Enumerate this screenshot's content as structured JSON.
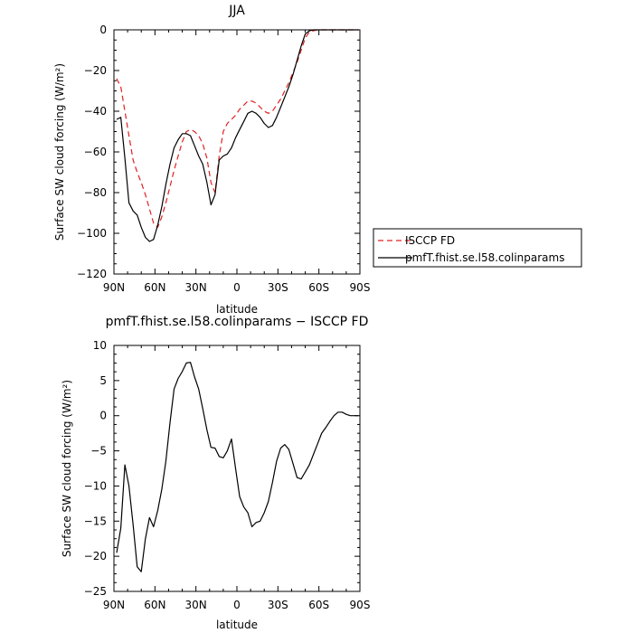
{
  "chart_data": [
    {
      "type": "line",
      "title": "JJA",
      "xlabel": "latitude",
      "ylabel": "Surface SW cloud forcing (W/m²)",
      "xlim": [
        90,
        -90
      ],
      "ylim": [
        -120,
        0
      ],
      "xticks": [
        90,
        60,
        30,
        0,
        -30,
        -60,
        -90
      ],
      "xtick_labels": [
        "90N",
        "60N",
        "30N",
        "0",
        "30S",
        "60S",
        "90S"
      ],
      "yticks": [
        0,
        -20,
        -40,
        -60,
        -80,
        -100,
        -120
      ],
      "ytick_labels": [
        "0",
        "−20",
        "−40",
        "−60",
        "−80",
        "−100",
        "−120"
      ],
      "legend": "outside-right",
      "series": [
        {
          "name": "ISCCP FD",
          "color": "#e02020",
          "dash": "dashed",
          "x": [
            88,
            85,
            82,
            79,
            76,
            73,
            70,
            67,
            64,
            61,
            58,
            55,
            52,
            49,
            46,
            43,
            40,
            37,
            34,
            31,
            28,
            25,
            22,
            19,
            16,
            13,
            10,
            7,
            4,
            1,
            -2,
            -5,
            -8,
            -11,
            -14,
            -17,
            -20,
            -23,
            -26,
            -29,
            -32,
            -35,
            -38,
            -41,
            -44,
            -47,
            -50,
            -53,
            -56,
            -59,
            -62,
            -65,
            -68,
            -71,
            -74,
            -77,
            -80,
            -83,
            -86,
            -89
          ],
          "y": [
            -24,
            -28,
            -40,
            -52,
            -64,
            -70,
            -75,
            -81,
            -88,
            -95,
            -97,
            -92,
            -85,
            -77,
            -69,
            -62,
            -55,
            -50,
            -49,
            -50,
            -52,
            -56,
            -63,
            -75,
            -80,
            -62,
            -50,
            -46,
            -44,
            -42,
            -39,
            -37,
            -35,
            -35,
            -36,
            -38,
            -40,
            -41,
            -40,
            -37,
            -34,
            -30,
            -26,
            -21,
            -16,
            -10,
            -4,
            -1,
            -0.5,
            0,
            0,
            0,
            0,
            0,
            0,
            0,
            0,
            0,
            0,
            0
          ]
        },
        {
          "name": "pmfT.fhist.se.l58.colinparams",
          "color": "#000000",
          "dash": "solid",
          "x": [
            88,
            85,
            82,
            79,
            76,
            73,
            70,
            67,
            64,
            61,
            58,
            55,
            52,
            49,
            46,
            43,
            40,
            37,
            34,
            31,
            28,
            25,
            22,
            19,
            16,
            13,
            10,
            7,
            4,
            1,
            -2,
            -5,
            -8,
            -11,
            -14,
            -17,
            -20,
            -23,
            -26,
            -29,
            -32,
            -35,
            -38,
            -41,
            -44,
            -47,
            -50,
            -53,
            -56,
            -59,
            -62,
            -65,
            -68,
            -71,
            -74,
            -77,
            -80,
            -83,
            -86,
            -89
          ],
          "y": [
            -44,
            -43,
            -63,
            -85,
            -89,
            -91,
            -97,
            -102,
            -104,
            -103,
            -96,
            -87,
            -76,
            -66,
            -58,
            -54,
            -51,
            -51,
            -52,
            -57,
            -62,
            -66,
            -75,
            -86,
            -81,
            -64,
            -62,
            -61,
            -58,
            -53,
            -49,
            -45,
            -41,
            -40,
            -41,
            -43,
            -46,
            -48,
            -47,
            -43,
            -38,
            -33,
            -28,
            -22,
            -15,
            -8,
            -2,
            -0.5,
            0,
            0,
            0,
            0,
            0,
            0,
            0,
            0,
            0,
            0,
            0,
            0
          ]
        }
      ]
    },
    {
      "type": "line",
      "title": "pmfT.fhist.se.l58.colinparams − ISCCP FD",
      "xlabel": "latitude",
      "ylabel": "Surface SW cloud forcing (W/m²)",
      "xlim": [
        90,
        -90
      ],
      "ylim": [
        -25,
        10
      ],
      "xticks": [
        90,
        60,
        30,
        0,
        -30,
        -60,
        -90
      ],
      "xtick_labels": [
        "90N",
        "60N",
        "30N",
        "0",
        "30S",
        "60S",
        "90S"
      ],
      "yticks": [
        10,
        5,
        0,
        -5,
        -10,
        -15,
        -20,
        -25
      ],
      "ytick_labels": [
        "10",
        "5",
        "0",
        "−5",
        "−10",
        "−15",
        "−20",
        "−25"
      ],
      "series": [
        {
          "color": "#000000",
          "dash": "solid",
          "x": [
            88,
            85,
            82,
            79,
            76,
            73,
            70,
            67,
            64,
            61,
            58,
            55,
            52,
            49,
            46,
            43,
            40,
            37,
            34,
            31,
            28,
            25,
            22,
            19,
            16,
            13,
            10,
            7,
            4,
            1,
            -2,
            -5,
            -8,
            -11,
            -14,
            -17,
            -20,
            -23,
            -26,
            -29,
            -32,
            -35,
            -38,
            -41,
            -44,
            -47,
            -50,
            -53,
            -56,
            -59,
            -62,
            -65,
            -68,
            -71,
            -74,
            -77,
            -80,
            -83,
            -86,
            -89
          ],
          "y": [
            -19.5,
            -16,
            -7,
            -10,
            -15.5,
            -21.5,
            -22.2,
            -17.5,
            -14.5,
            -15.8,
            -13.5,
            -10.5,
            -6.5,
            -1,
            3.8,
            5.3,
            6.3,
            7.5,
            7.6,
            5.5,
            3.8,
            1,
            -2,
            -4.5,
            -4.6,
            -5.8,
            -6,
            -5,
            -3.3,
            -7.5,
            -11.5,
            -13,
            -13.8,
            -15.8,
            -15.2,
            -15,
            -13.8,
            -12.2,
            -9.5,
            -6.5,
            -4.6,
            -4.1,
            -4.8,
            -6.8,
            -8.8,
            -9,
            -8,
            -7,
            -5.5,
            -4,
            -2.5,
            -1.7,
            -0.8,
            0,
            0.5,
            0.5,
            0.2,
            0,
            0,
            0
          ]
        }
      ]
    }
  ]
}
